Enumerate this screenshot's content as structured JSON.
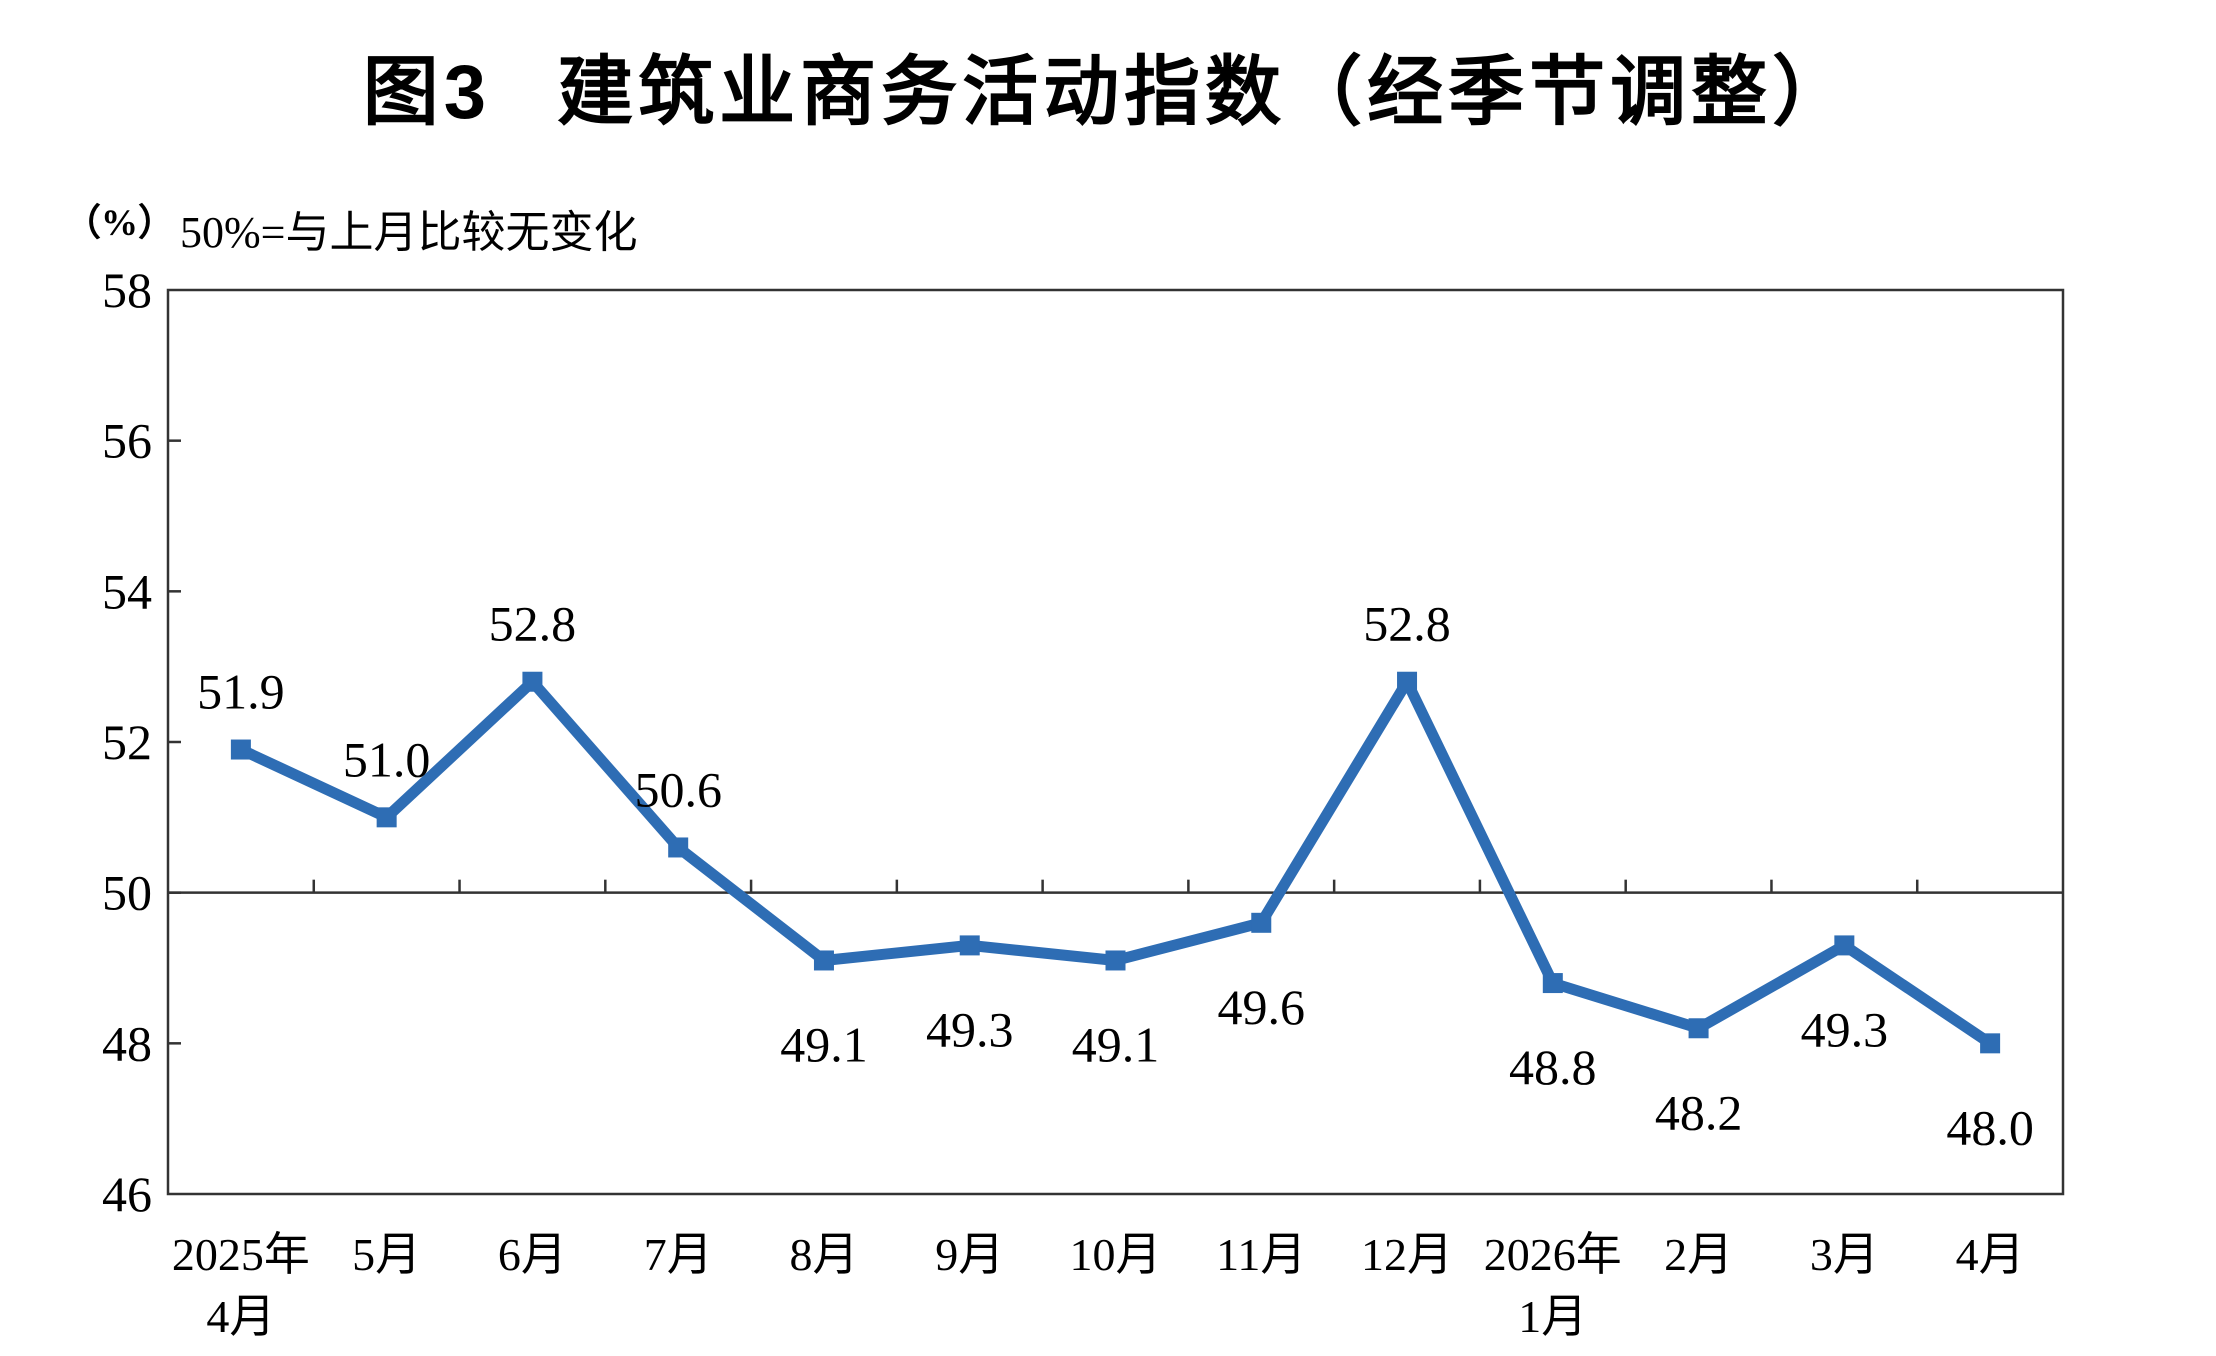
{
  "title": "图3 建筑业商务活动指数（经季节调整）",
  "y_axis_unit": "（%）",
  "subtitle": "50%=与上月比较无变化",
  "chart_data": {
    "type": "line",
    "title": "图3 建筑业商务活动指数（经季节调整）",
    "subtitle": "50%=与上月比较无变化",
    "unit": "%",
    "categories": [
      "2025年\n4月",
      "5月",
      "6月",
      "7月",
      "8月",
      "9月",
      "10月",
      "11月",
      "12月",
      "2026年\n1月",
      "2月",
      "3月",
      "4月"
    ],
    "values": [
      51.9,
      51.0,
      52.8,
      50.6,
      49.1,
      49.3,
      49.1,
      49.6,
      52.8,
      48.8,
      48.2,
      49.3,
      48.0
    ],
    "value_labels": [
      "51.9",
      "51.0",
      "52.8",
      "50.6",
      "49.1",
      "49.3",
      "49.1",
      "49.6",
      "52.8",
      "48.8",
      "48.2",
      "49.3",
      "48.0"
    ],
    "ylim": [
      46,
      58
    ],
    "yticks": [
      46,
      48,
      50,
      52,
      54,
      56,
      58
    ],
    "reference_line": 50,
    "grid": false,
    "legend": false,
    "marker": "square",
    "series_color": "#2E6DB4",
    "axis_color": "#333333"
  }
}
